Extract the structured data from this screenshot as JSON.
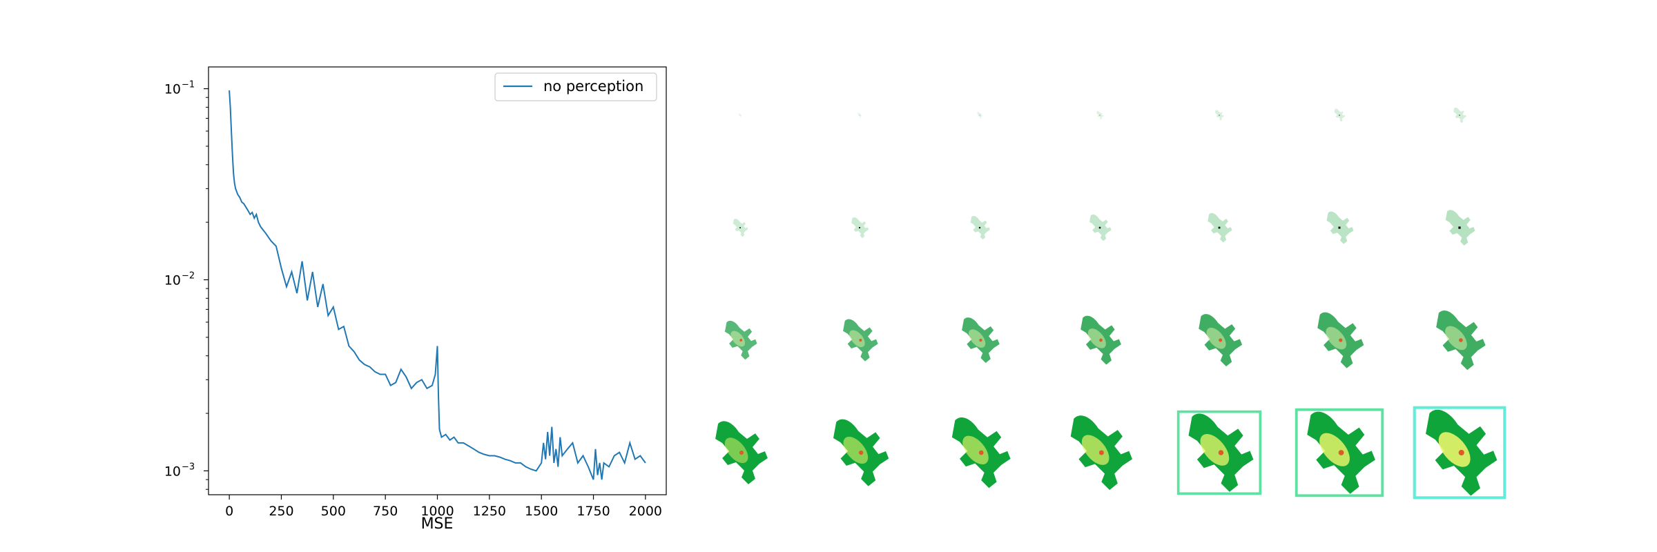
{
  "chart_data": {
    "type": "line",
    "title": "",
    "xlabel": "MSE",
    "ylabel": "",
    "xscale": "linear",
    "yscale": "log",
    "xlim": [
      -100,
      2100
    ],
    "ylim": [
      0.00075,
      0.13
    ],
    "xticks": [
      0,
      250,
      500,
      750,
      1000,
      1250,
      1500,
      1750,
      2000
    ],
    "xtick_labels": [
      "0",
      "250",
      "500",
      "750",
      "1000",
      "1250",
      "1500",
      "1750",
      "2000"
    ],
    "yticks": [
      0.1,
      0.01,
      0.001
    ],
    "ytick_labels": [
      {
        "base": "10",
        "exp": "−1"
      },
      {
        "base": "10",
        "exp": "−2"
      },
      {
        "base": "10",
        "exp": "−3"
      }
    ],
    "grid": false,
    "legend_placement": "upper right",
    "series": [
      {
        "name": "no perception",
        "color": "#1f77b4",
        "x": [
          0,
          5,
          10,
          15,
          20,
          25,
          30,
          40,
          50,
          60,
          70,
          80,
          90,
          100,
          110,
          120,
          130,
          140,
          150,
          175,
          200,
          225,
          250,
          275,
          300,
          325,
          350,
          375,
          400,
          425,
          450,
          475,
          500,
          525,
          550,
          575,
          600,
          625,
          650,
          675,
          700,
          725,
          750,
          775,
          800,
          825,
          850,
          875,
          900,
          925,
          950,
          975,
          990,
          1000,
          1005,
          1010,
          1020,
          1040,
          1060,
          1080,
          1100,
          1125,
          1150,
          1175,
          1200,
          1225,
          1250,
          1275,
          1300,
          1325,
          1350,
          1375,
          1400,
          1425,
          1450,
          1475,
          1500,
          1510,
          1520,
          1530,
          1540,
          1550,
          1560,
          1570,
          1580,
          1590,
          1600,
          1625,
          1650,
          1675,
          1700,
          1725,
          1750,
          1760,
          1770,
          1780,
          1790,
          1800,
          1825,
          1850,
          1875,
          1900,
          1925,
          1950,
          1975,
          2000
        ],
        "y": [
          0.098,
          0.08,
          0.06,
          0.045,
          0.036,
          0.032,
          0.03,
          0.028,
          0.027,
          0.0255,
          0.025,
          0.024,
          0.023,
          0.022,
          0.0225,
          0.021,
          0.022,
          0.02,
          0.019,
          0.0175,
          0.016,
          0.015,
          0.0115,
          0.0092,
          0.011,
          0.0085,
          0.0125,
          0.0078,
          0.011,
          0.0072,
          0.0095,
          0.0065,
          0.0072,
          0.0055,
          0.0057,
          0.0045,
          0.0042,
          0.0038,
          0.0036,
          0.0035,
          0.0033,
          0.0032,
          0.0032,
          0.0028,
          0.0029,
          0.0034,
          0.0031,
          0.0027,
          0.0029,
          0.003,
          0.0027,
          0.0028,
          0.0032,
          0.0045,
          0.0025,
          0.00165,
          0.0015,
          0.00155,
          0.00145,
          0.0015,
          0.0014,
          0.0014,
          0.00135,
          0.0013,
          0.00125,
          0.00122,
          0.0012,
          0.0012,
          0.00118,
          0.00115,
          0.00113,
          0.0011,
          0.0011,
          0.00105,
          0.00102,
          0.001,
          0.0011,
          0.0014,
          0.00115,
          0.0016,
          0.0012,
          0.0017,
          0.0011,
          0.0013,
          0.00105,
          0.0015,
          0.0012,
          0.0013,
          0.0014,
          0.0011,
          0.0012,
          0.00105,
          0.0009,
          0.0013,
          0.00095,
          0.0011,
          0.0009,
          0.0011,
          0.00105,
          0.0012,
          0.00125,
          0.0011,
          0.0014,
          0.00115,
          0.0012,
          0.0011
        ]
      }
    ]
  },
  "image_grid": {
    "rows": 4,
    "cols": 7,
    "content": "lizard growth snapshots"
  }
}
